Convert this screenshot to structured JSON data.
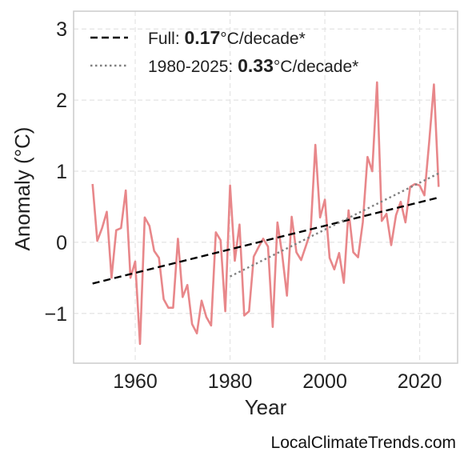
{
  "chart_data": {
    "type": "line",
    "xlabel": "Year",
    "ylabel": "Anomaly (°C)",
    "xlim": [
      1947,
      2028
    ],
    "ylim": [
      -1.7,
      3.25
    ],
    "xticks": [
      1960,
      1980,
      2000,
      2020
    ],
    "xtick_labels": [
      "1960",
      "1980",
      "2000",
      "2020"
    ],
    "yticks": [
      -1,
      0,
      1,
      2,
      3
    ],
    "ytick_labels": [
      "−1",
      "0",
      "1",
      "2",
      "3"
    ],
    "grid": true,
    "legend_position": "top-left",
    "series": [
      {
        "color": "#e8878a",
        "style": "solid",
        "x": [
          1951,
          1952,
          1953,
          1954,
          1955,
          1956,
          1957,
          1958,
          1959,
          1960,
          1961,
          1962,
          1963,
          1964,
          1965,
          1966,
          1967,
          1968,
          1969,
          1970,
          1971,
          1972,
          1973,
          1974,
          1975,
          1976,
          1977,
          1978,
          1979,
          1980,
          1981,
          1982,
          1983,
          1984,
          1985,
          1986,
          1987,
          1988,
          1989,
          1990,
          1991,
          1992,
          1993,
          1994,
          1995,
          1996,
          1997,
          1998,
          1999,
          2000,
          2001,
          2002,
          2003,
          2004,
          2005,
          2006,
          2007,
          2008,
          2009,
          2010,
          2011,
          2012,
          2013,
          2014,
          2015,
          2016,
          2017,
          2018,
          2019,
          2020,
          2021,
          2022,
          2023,
          2024
        ],
        "y": [
          0.82,
          0.02,
          0.2,
          0.43,
          -0.5,
          0.17,
          0.2,
          0.73,
          -0.5,
          -0.27,
          -1.43,
          0.35,
          0.23,
          -0.12,
          -0.22,
          -0.8,
          -0.92,
          -0.92,
          0.05,
          -0.77,
          -0.6,
          -1.15,
          -1.28,
          -0.82,
          -1.05,
          -1.17,
          0.14,
          0.03,
          -0.97,
          0.8,
          -0.26,
          0.25,
          -1.03,
          -0.97,
          -0.2,
          -0.07,
          0.05,
          -0.06,
          -1.19,
          0.28,
          -0.17,
          -0.75,
          0.36,
          -0.14,
          -0.25,
          -0.05,
          0.15,
          1.37,
          0.35,
          0.6,
          -0.22,
          -0.38,
          -0.15,
          -0.57,
          0.45,
          -0.14,
          -0.21,
          0.28,
          1.2,
          1.0,
          2.25,
          0.3,
          0.4,
          -0.04,
          0.38,
          0.57,
          0.28,
          0.78,
          0.82,
          0.8,
          0.66,
          1.4,
          2.22,
          0.78
        ]
      },
      {
        "name": "Full",
        "color": "#000000",
        "style": "dashed",
        "x": [
          1951,
          2024
        ],
        "y": [
          -0.58,
          0.63
        ]
      },
      {
        "name": "1980-2025",
        "color": "#808080",
        "style": "dotted",
        "x": [
          1980,
          2024
        ],
        "y": [
          -0.48,
          0.97
        ]
      }
    ],
    "legend": [
      {
        "prefix": "Full: ",
        "value": "0.17",
        "suffix": "°C/decade*",
        "style": "dashed",
        "color": "#000000"
      },
      {
        "prefix": "1980-2025: ",
        "value": "0.33",
        "suffix": "°C/decade*",
        "style": "dotted",
        "color": "#808080"
      }
    ]
  },
  "watermark": "LocalClimateTrends.com"
}
